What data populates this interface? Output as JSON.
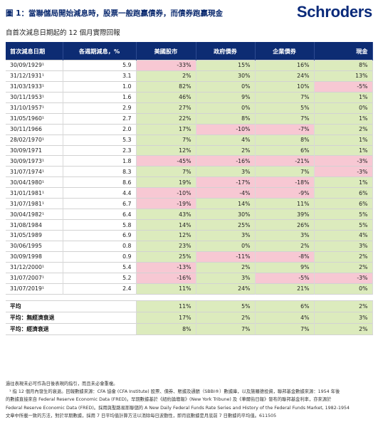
{
  "header": {
    "title": "圖 1：當聯儲局開始減息時，股票一般跑贏債券，而債券跑贏現金",
    "logo": "Schroders"
  },
  "subtitle": "自首次減息日期起的 12 個月實際回報",
  "table": {
    "columns": [
      "首次減息日期",
      "各週期減息，%",
      "美國股市",
      "政府債券",
      "企業債券",
      "現金"
    ],
    "rows": [
      {
        "date": "30/09/1929¹",
        "cut": "5.9",
        "values": [
          "-33%",
          "15%",
          "16%",
          "8%"
        ]
      },
      {
        "date": "31/12/1931¹",
        "cut": "3.1",
        "values": [
          "2%",
          "30%",
          "24%",
          "13%"
        ]
      },
      {
        "date": "31/03/1933¹",
        "cut": "1.0",
        "values": [
          "82%",
          "0%",
          "10%",
          "-5%"
        ]
      },
      {
        "date": "30/11/1953¹",
        "cut": "1.6",
        "values": [
          "46%",
          "9%",
          "7%",
          "1%"
        ]
      },
      {
        "date": "31/10/1957¹",
        "cut": "2.9",
        "values": [
          "27%",
          "0%",
          "5%",
          "0%"
        ]
      },
      {
        "date": "31/05/1960¹",
        "cut": "2.7",
        "values": [
          "22%",
          "8%",
          "7%",
          "1%"
        ]
      },
      {
        "date": "30/11/1966",
        "cut": "2.0",
        "values": [
          "17%",
          "-10%",
          "-7%",
          "2%"
        ]
      },
      {
        "date": "28/02/1970¹",
        "cut": "5.3",
        "values": [
          "7%",
          "4%",
          "8%",
          "1%"
        ]
      },
      {
        "date": "30/09/1971",
        "cut": "2.3",
        "values": [
          "12%",
          "2%",
          "6%",
          "1%"
        ]
      },
      {
        "date": "30/09/1973¹",
        "cut": "1.8",
        "values": [
          "-45%",
          "-16%",
          "-21%",
          "-3%"
        ]
      },
      {
        "date": "31/07/1974¹",
        "cut": "8.3",
        "values": [
          "7%",
          "3%",
          "7%",
          "-3%"
        ]
      },
      {
        "date": "30/04/1980¹",
        "cut": "8.6",
        "values": [
          "19%",
          "-17%",
          "-18%",
          "1%"
        ]
      },
      {
        "date": "31/01/1981¹",
        "cut": "4.4",
        "values": [
          "-10%",
          "-4%",
          "-9%",
          "6%"
        ]
      },
      {
        "date": "31/07/1981¹",
        "cut": "6.7",
        "values": [
          "-19%",
          "14%",
          "11%",
          "6%"
        ]
      },
      {
        "date": "30/04/1982¹",
        "cut": "6.4",
        "values": [
          "43%",
          "30%",
          "39%",
          "5%"
        ]
      },
      {
        "date": "31/08/1984",
        "cut": "5.8",
        "values": [
          "14%",
          "25%",
          "26%",
          "5%"
        ]
      },
      {
        "date": "31/05/1989",
        "cut": "6.9",
        "values": [
          "12%",
          "3%",
          "3%",
          "4%"
        ]
      },
      {
        "date": "30/06/1995",
        "cut": "0.8",
        "values": [
          "23%",
          "0%",
          "2%",
          "3%"
        ]
      },
      {
        "date": "30/09/1998",
        "cut": "0.9",
        "values": [
          "25%",
          "-11%",
          "-8%",
          "2%"
        ]
      },
      {
        "date": "31/12/2000¹",
        "cut": "5.4",
        "values": [
          "-13%",
          "2%",
          "9%",
          "2%"
        ]
      },
      {
        "date": "31/07/2007¹",
        "cut": "5.2",
        "values": [
          "-16%",
          "3%",
          "-5%",
          "-3%"
        ]
      },
      {
        "date": "31/07/2019¹",
        "cut": "2.4",
        "values": [
          "11%",
          "24%",
          "21%",
          "0%"
        ]
      }
    ],
    "averages": [
      {
        "label": "平均",
        "values": [
          "11%",
          "5%",
          "6%",
          "2%"
        ]
      },
      {
        "label": "平均：無經濟衰退",
        "values": [
          "17%",
          "2%",
          "4%",
          "3%"
        ]
      },
      {
        "label": "平均：經濟衰退",
        "values": [
          "8%",
          "7%",
          "7%",
          "2%"
        ]
      }
    ]
  },
  "notes": [
    "過往表現未必可作為日後表現的指引，而且未必會重複。",
    "¹ 指 12 個月內發生的衰退。回報數據來源：CFA 協會 (CFA Institute) 股票、債券、賬據及通脹（SBBI®）數據庫，以及施羅德投資，聯邦基金數據來源：1954 年後",
    "的數據直接來自 Federal Reserve Economic Data (FRED)。早期數據基於《紐約論壇報》(New York Tribune) 及《華爾街日報》發布的聯邦基金利率，亦來源於",
    "Federal Reserve Economic Data (FRED)。採用與聖路易斯聯儲的 A New Daily Federal Funds Rate Series and History of the Federal Funds Market, 1982-1954",
    "文章中所載一致的方法，對於早期數據，採用 7 日平均值計算方法以消除每日波動性，即月底數據是月底前 7 日數據的平均值。611505"
  ],
  "colors": {
    "header_bg": "#0d2c73",
    "positive": "#dcebbd",
    "negative": "#f7c8d3",
    "logo": "#0a2a7a"
  }
}
